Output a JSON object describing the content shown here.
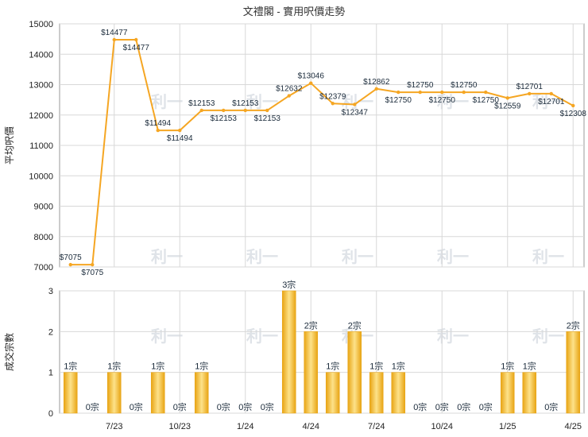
{
  "title": "文禮閣 - 實用呎價走勢",
  "watermark": "利一",
  "colors": {
    "line": "#f5a623",
    "bar_light": "#fde28a",
    "bar_dark": "#e8a413",
    "grid": "#d8d8d8",
    "frame": "#999999"
  },
  "chart_data": [
    {
      "type": "line",
      "ylabel": "平均呎價",
      "ylim": [
        7000,
        15000
      ],
      "yticks": [
        7000,
        8000,
        9000,
        10000,
        11000,
        12000,
        13000,
        14000,
        15000
      ],
      "values": [
        7075,
        7075,
        14477,
        14477,
        11494,
        11494,
        12153,
        12153,
        12153,
        12153,
        12632,
        13046,
        12379,
        12347,
        12862,
        12750,
        12750,
        12750,
        12750,
        12750,
        12559,
        12701,
        12701,
        12308
      ],
      "labels": [
        "$7075",
        "$7075",
        "$14477",
        "$14477",
        "$11494",
        "$11494",
        "$12153",
        "$12153",
        "$12153",
        "$12153",
        "$12632",
        "$13046",
        "$12379",
        "$12347",
        "$12862",
        "$12750",
        "$12750",
        "$12750",
        "$12750",
        "$12750",
        "$12559",
        "$12701",
        "$12701",
        "$12308"
      ],
      "label_pos": [
        "above",
        "below",
        "above",
        "below",
        "above",
        "below",
        "above",
        "below",
        "above",
        "below",
        "above",
        "above",
        "above",
        "below",
        "above",
        "below",
        "above",
        "below",
        "above",
        "below",
        "below",
        "above",
        "below",
        "below"
      ]
    },
    {
      "type": "bar",
      "ylabel": "成交宗數",
      "ylim": [
        0,
        3
      ],
      "yticks": [
        0,
        1,
        2,
        3
      ],
      "values": [
        1,
        0,
        1,
        0,
        1,
        0,
        1,
        0,
        0,
        0,
        3,
        2,
        1,
        2,
        1,
        1,
        0,
        0,
        0,
        0,
        1,
        1,
        0,
        2
      ],
      "labels": [
        "1宗",
        "0宗",
        "1宗",
        "0宗",
        "1宗",
        "0宗",
        "1宗",
        "0宗",
        "0宗",
        "0宗",
        "3宗",
        "2宗",
        "1宗",
        "2宗",
        "1宗",
        "1宗",
        "0宗",
        "0宗",
        "0宗",
        "0宗",
        "1宗",
        "1宗",
        "0宗",
        "2宗"
      ],
      "x_ticks": [
        {
          "index": 2,
          "label": "7/23"
        },
        {
          "index": 5,
          "label": "10/23"
        },
        {
          "index": 8,
          "label": "1/24"
        },
        {
          "index": 11,
          "label": "4/24"
        },
        {
          "index": 14,
          "label": "7/24"
        },
        {
          "index": 17,
          "label": "10/24"
        },
        {
          "index": 20,
          "label": "1/25"
        },
        {
          "index": 23,
          "label": "4/25"
        }
      ]
    }
  ]
}
